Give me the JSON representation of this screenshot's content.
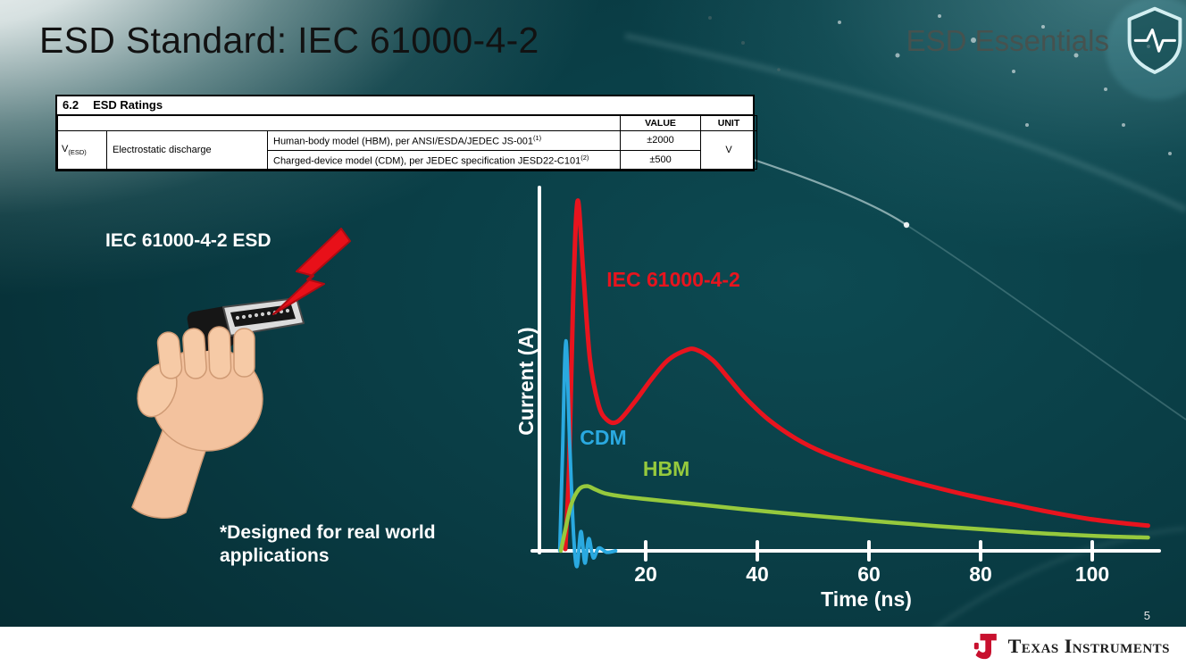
{
  "slide": {
    "title": "ESD Standard: IEC 61000-4-2",
    "program": "ESD Essentials",
    "page_number": "5"
  },
  "ratings_table": {
    "section_number": "6.2",
    "section_title": "ESD Ratings",
    "value_header": "VALUE",
    "unit_header": "UNIT",
    "symbol_base": "V",
    "symbol_sub": "(ESD)",
    "parameter": "Electrostatic discharge",
    "rows": [
      {
        "description": "Human-body model (HBM), per ANSI/ESDA/JEDEC JS-001",
        "sup": "(1)",
        "value": "±2000"
      },
      {
        "description": "Charged-device model (CDM), per JEDEC specification JESD22-C101",
        "sup": "(2)",
        "value": "±500"
      }
    ],
    "unit": "V"
  },
  "left_panel": {
    "connector_label": "IEC 61000-4-2 ESD",
    "footnote": "*Designed for real world applications"
  },
  "footer": {
    "brand": "Texas Instruments"
  },
  "chart_data": {
    "type": "line",
    "title": "",
    "xlabel": "Time (ns)",
    "ylabel": "Current (A)",
    "xlim": [
      0,
      112
    ],
    "x_ticks": [
      20,
      40,
      60,
      80,
      100
    ],
    "y_tick_labels_shown": false,
    "amplitude_scale": "relative current, normalized to IEC 61000-4-2 first peak = 1.0",
    "grid": false,
    "legend": "inline curve labels",
    "series": [
      {
        "id": "iec",
        "name": "IEC 61000-4-2",
        "color": "#e8141e",
        "width": 5,
        "label_pos": [
          13,
          0.775
        ],
        "points": [
          [
            5.6,
            0.005
          ],
          [
            6.3,
            0.25
          ],
          [
            7,
            0.72
          ],
          [
            7.8,
            1.0
          ],
          [
            8.8,
            0.8
          ],
          [
            10,
            0.55
          ],
          [
            11.5,
            0.42
          ],
          [
            13,
            0.375
          ],
          [
            15,
            0.37
          ],
          [
            18,
            0.425
          ],
          [
            21,
            0.49
          ],
          [
            24,
            0.545
          ],
          [
            27,
            0.572
          ],
          [
            29,
            0.575
          ],
          [
            32,
            0.545
          ],
          [
            35,
            0.49
          ],
          [
            38,
            0.435
          ],
          [
            42,
            0.375
          ],
          [
            47,
            0.32
          ],
          [
            52,
            0.28
          ],
          [
            58,
            0.245
          ],
          [
            64,
            0.215
          ],
          [
            71,
            0.185
          ],
          [
            78,
            0.158
          ],
          [
            85,
            0.135
          ],
          [
            92,
            0.112
          ],
          [
            99,
            0.092
          ],
          [
            105,
            0.08
          ],
          [
            110,
            0.072
          ]
        ]
      },
      {
        "id": "cdm",
        "name": "CDM",
        "color": "#2aa9e0",
        "width": 4,
        "label_pos": [
          8.2,
          0.325
        ],
        "points": [
          [
            4.6,
            0
          ],
          [
            5.1,
            0.28
          ],
          [
            5.7,
            0.6
          ],
          [
            6.4,
            0.3
          ],
          [
            7.1,
            0.04
          ],
          [
            7.7,
            -0.045
          ],
          [
            8.4,
            0.055
          ],
          [
            9.1,
            -0.035
          ],
          [
            9.8,
            0.035
          ],
          [
            10.6,
            -0.02
          ],
          [
            11.6,
            0.008
          ],
          [
            13,
            -0.004
          ],
          [
            14.6,
            0
          ]
        ]
      },
      {
        "id": "hbm",
        "name": "HBM",
        "color": "#96c93d",
        "width": 4.5,
        "label_pos": [
          19.5,
          0.235
        ],
        "points": [
          [
            4.8,
            0
          ],
          [
            5.6,
            0.06
          ],
          [
            6.6,
            0.13
          ],
          [
            8,
            0.175
          ],
          [
            9.5,
            0.185
          ],
          [
            11,
            0.175
          ],
          [
            13,
            0.163
          ],
          [
            16,
            0.155
          ],
          [
            20,
            0.148
          ],
          [
            26,
            0.138
          ],
          [
            32,
            0.128
          ],
          [
            40,
            0.115
          ],
          [
            48,
            0.103
          ],
          [
            56,
            0.092
          ],
          [
            64,
            0.081
          ],
          [
            72,
            0.071
          ],
          [
            80,
            0.062
          ],
          [
            88,
            0.053
          ],
          [
            96,
            0.046
          ],
          [
            103,
            0.041
          ],
          [
            110,
            0.038
          ]
        ]
      }
    ]
  }
}
